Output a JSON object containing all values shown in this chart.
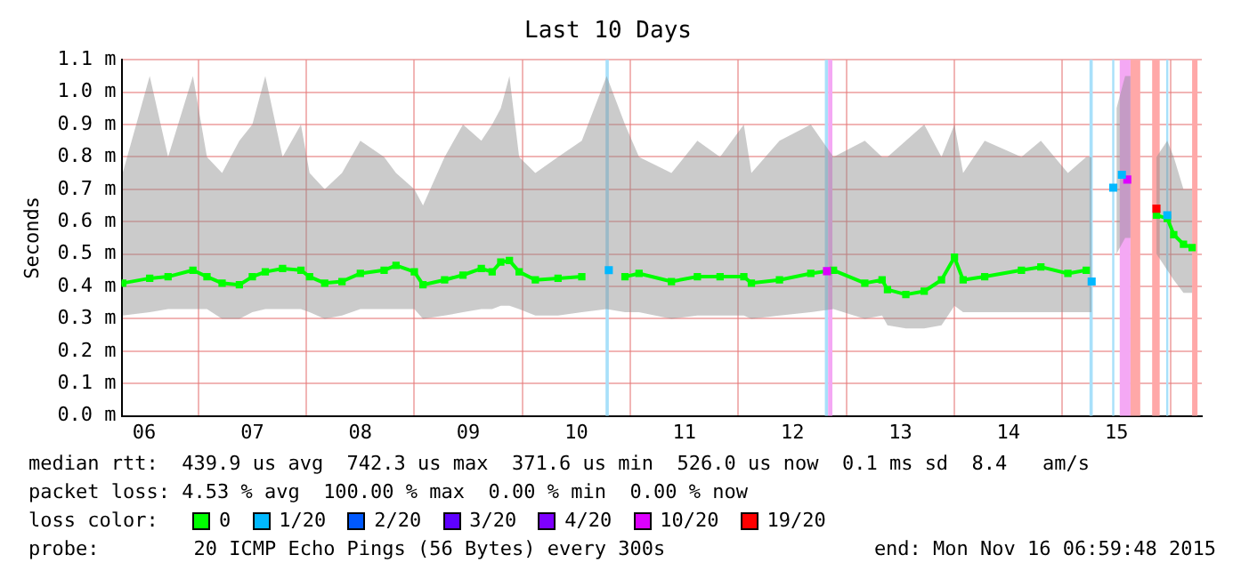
{
  "chart_data": {
    "type": "line",
    "title": "Last 10 Days",
    "ylabel": "Seconds",
    "xlim": [
      6.29,
      16.29
    ],
    "xticks": [
      {
        "value": 6.5,
        "label": "06"
      },
      {
        "value": 7,
        "label": null
      },
      {
        "value": 7.5,
        "label": "07"
      },
      {
        "value": 8,
        "label": null
      },
      {
        "value": 8.5,
        "label": "08"
      },
      {
        "value": 9,
        "label": null
      },
      {
        "value": 9.5,
        "label": "09"
      },
      {
        "value": 10,
        "label": null
      },
      {
        "value": 10.5,
        "label": "10"
      },
      {
        "value": 11,
        "label": null
      },
      {
        "value": 11.5,
        "label": "11"
      },
      {
        "value": 12,
        "label": null
      },
      {
        "value": 12.5,
        "label": "12"
      },
      {
        "value": 13,
        "label": null
      },
      {
        "value": 13.5,
        "label": "13"
      },
      {
        "value": 14,
        "label": null
      },
      {
        "value": 14.5,
        "label": "14"
      },
      {
        "value": 15,
        "label": null
      },
      {
        "value": 15.5,
        "label": "15"
      },
      {
        "value": 16,
        "label": null
      }
    ],
    "ylim": [
      0,
      1.1
    ],
    "yticks": [
      {
        "value": 0,
        "label": "0.0 m"
      },
      {
        "value": 0.1,
        "label": "0.1 m"
      },
      {
        "value": 0.2,
        "label": "0.2 m"
      },
      {
        "value": 0.3,
        "label": "0.3 m"
      },
      {
        "value": 0.4,
        "label": "0.4 m"
      },
      {
        "value": 0.5,
        "label": "0.5 m"
      },
      {
        "value": 0.6,
        "label": "0.6 m"
      },
      {
        "value": 0.7,
        "label": "0.7 m"
      },
      {
        "value": 0.8,
        "label": "0.8 m"
      },
      {
        "value": 0.9,
        "label": "0.9 m"
      },
      {
        "value": 1.0,
        "label": "1.0 m"
      },
      {
        "value": 1.1,
        "label": "1.1 m"
      }
    ],
    "grid": true,
    "legend": "bottom",
    "legend_title": "loss color:",
    "marker": "square",
    "series": [
      {
        "name": "0",
        "type": "line",
        "color": "#00ff00",
        "x": [
          6.3,
          6.55,
          6.72,
          6.95,
          7.08,
          7.22,
          7.38,
          7.5,
          7.62,
          7.78,
          7.95,
          8.03,
          8.17,
          8.33,
          8.5,
          8.72,
          8.83,
          9.0,
          9.08,
          9.28,
          9.45,
          9.62,
          9.72,
          9.8,
          9.88,
          9.97,
          10.12,
          10.33,
          10.55,
          10.78,
          10.95,
          11.08,
          11.38,
          11.62,
          11.83,
          12.05,
          12.12,
          12.38,
          12.67,
          12.88,
          13.17,
          13.33,
          13.38,
          13.55,
          13.72,
          13.88,
          14.0,
          14.08,
          14.28,
          14.62,
          14.8,
          15.05,
          15.22,
          15.27,
          15.4,
          15.5,
          15.58,
          15.63,
          15.75,
          15.87,
          15.97,
          16.03,
          16.12,
          16.2
        ],
        "values": [
          0.41,
          0.425,
          0.43,
          0.45,
          0.43,
          0.41,
          0.405,
          0.43,
          0.445,
          0.455,
          0.45,
          0.43,
          0.41,
          0.415,
          0.44,
          0.45,
          0.465,
          0.445,
          0.405,
          0.42,
          0.435,
          0.455,
          0.445,
          0.475,
          0.48,
          0.445,
          0.42,
          0.425,
          0.43,
          null,
          0.43,
          0.44,
          0.415,
          0.43,
          0.43,
          0.43,
          0.41,
          0.42,
          0.44,
          0.45,
          0.41,
          0.42,
          0.39,
          0.375,
          0.385,
          0.42,
          0.49,
          0.42,
          0.43,
          0.45,
          0.46,
          0.44,
          0.45,
          null,
          null,
          null,
          null,
          null,
          null,
          0.62,
          0.61,
          0.56,
          0.53,
          0.52
        ],
        "lower": [
          0.31,
          0.32,
          0.33,
          0.33,
          0.33,
          0.3,
          0.3,
          0.32,
          0.33,
          0.33,
          0.33,
          0.32,
          0.3,
          0.31,
          0.33,
          0.33,
          0.33,
          0.33,
          0.3,
          0.31,
          0.32,
          0.33,
          0.33,
          0.34,
          0.34,
          0.33,
          0.31,
          0.31,
          0.32,
          0.33,
          0.32,
          0.32,
          0.3,
          0.31,
          0.31,
          0.31,
          0.3,
          0.31,
          0.32,
          0.33,
          0.3,
          0.31,
          0.28,
          0.27,
          0.27,
          0.28,
          0.34,
          0.32,
          0.32,
          0.32,
          0.32,
          0.32,
          0.32,
          0.32,
          null,
          0.5,
          0.55,
          0.55,
          null,
          0.5,
          0.45,
          0.42,
          0.38,
          0.38
        ],
        "upper": [
          0.75,
          1.05,
          0.8,
          1.05,
          0.8,
          0.75,
          0.85,
          0.9,
          1.05,
          0.8,
          0.9,
          0.75,
          0.7,
          0.75,
          0.85,
          0.8,
          0.75,
          0.7,
          0.65,
          0.8,
          0.9,
          0.85,
          0.9,
          0.95,
          1.05,
          0.8,
          0.75,
          0.8,
          0.85,
          1.05,
          0.9,
          0.8,
          0.75,
          0.85,
          0.8,
          0.9,
          0.75,
          0.85,
          0.9,
          0.8,
          0.85,
          0.8,
          0.8,
          0.85,
          0.9,
          0.8,
          0.9,
          0.75,
          0.85,
          0.8,
          0.85,
          0.75,
          0.8,
          0.8,
          null,
          0.95,
          1.05,
          1.05,
          null,
          0.8,
          0.85,
          0.8,
          0.7,
          0.7
        ]
      },
      {
        "name": "1/20",
        "type": "scatter",
        "color": "#00b8ff",
        "x": [
          10.8,
          15.27,
          15.47,
          15.55,
          15.97
        ],
        "values": [
          0.45,
          0.415,
          0.705,
          0.745,
          0.62
        ]
      },
      {
        "name": "2/20",
        "type": "scatter",
        "color": "#0059ff"
      },
      {
        "name": "3/20",
        "type": "scatter",
        "color": "#5e00ff"
      },
      {
        "name": "4/20",
        "type": "scatter",
        "color": "#7e00ff"
      },
      {
        "name": "10/20",
        "type": "scatter",
        "color": "#dd00ff",
        "x": [
          12.82,
          15.6
        ],
        "values": [
          0.447,
          0.73
        ]
      },
      {
        "name": "19/20",
        "type": "scatter",
        "color": "#ff0000",
        "x": [
          15.87
        ],
        "values": [
          0.64
        ]
      }
    ],
    "bands": [
      {
        "axis": "x",
        "from": 10.77,
        "to": 10.8,
        "color": "#a8e0fa"
      },
      {
        "axis": "x",
        "from": 12.8,
        "to": 12.83,
        "color": "#a8e0fa"
      },
      {
        "axis": "x",
        "from": 12.83,
        "to": 12.87,
        "color": "#f4a8f4"
      },
      {
        "axis": "x",
        "from": 15.25,
        "to": 15.28,
        "color": "#a8e0fa"
      },
      {
        "axis": "x",
        "from": 15.46,
        "to": 15.48,
        "color": "#a8e0fa"
      },
      {
        "axis": "x",
        "from": 15.53,
        "to": 15.63,
        "color": "#f4a8f4"
      },
      {
        "axis": "x",
        "from": 15.63,
        "to": 15.72,
        "color": "#ffa8a8"
      },
      {
        "axis": "x",
        "from": 15.83,
        "to": 15.9,
        "color": "#ffa8a8"
      },
      {
        "axis": "x",
        "from": 15.96,
        "to": 15.98,
        "color": "#a8e0fa"
      },
      {
        "axis": "x",
        "from": 16.2,
        "to": 16.25,
        "color": "#ffa8a8"
      }
    ],
    "annotations": [
      "median rtt:  439.9 us avg  742.3 us max  371.6 us min  526.0 us now  0.1 ms sd  8.4   am/s",
      "packet loss: 4.53 % avg  100.00 % max  0.00 % min  0.00 % now",
      "probe:        20 ICMP Echo Pings (56 Bytes) every 300s",
      "end: Mon Nov 16 06:59:48 2015"
    ]
  }
}
